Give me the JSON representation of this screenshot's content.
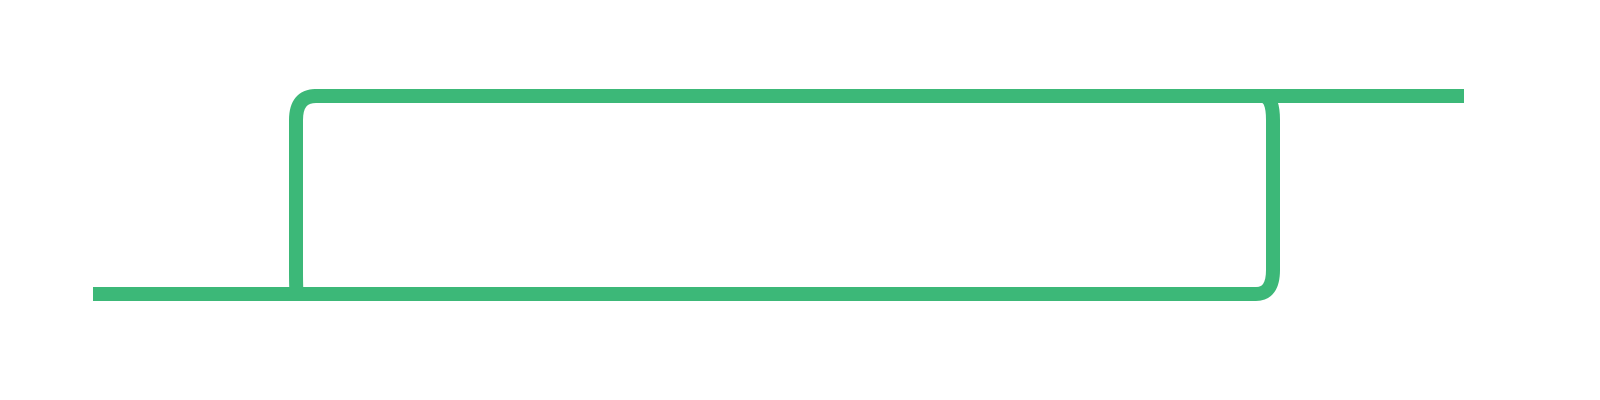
{
  "diagram": {
    "type": "line-path",
    "colors": {
      "stroke": "#3cb878",
      "background": "#ffffff"
    }
  }
}
